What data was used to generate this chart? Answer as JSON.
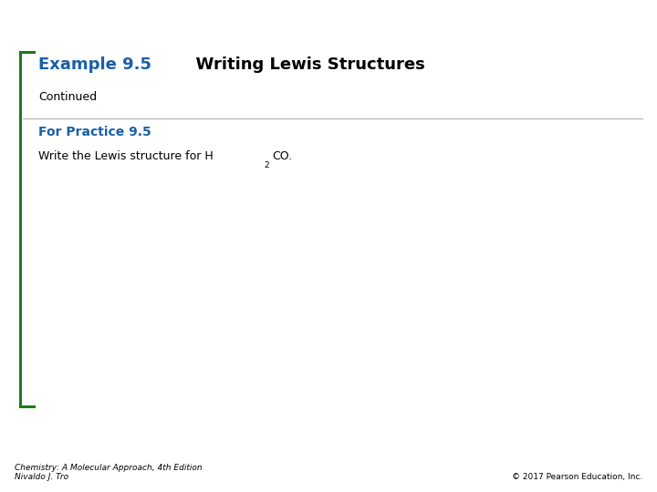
{
  "background_color": "#ffffff",
  "green_bracket_color": "#1e7a1e",
  "blue_text_color": "#1a5fa8",
  "black_text_color": "#000000",
  "gray_line_color": "#aaaaaa",
  "title_blue_part": "Example 9.5",
  "title_black_part": "  Writing Lewis Structures",
  "subtitle": "Continued",
  "section_label": "For Practice 9.5",
  "section_body": "Write the Lewis structure for H",
  "section_body_sub": "2",
  "section_body_end": "CO.",
  "footer_left_line1": "Chemistry: A Molecular Approach, 4th Edition",
  "footer_left_line2": "Nivaldo J. Tro",
  "footer_right": "© 2017 Pearson Education, Inc.",
  "title_fontsize": 13,
  "subtitle_fontsize": 9,
  "section_label_fontsize": 10,
  "body_fontsize": 9,
  "footer_fontsize": 6.5
}
